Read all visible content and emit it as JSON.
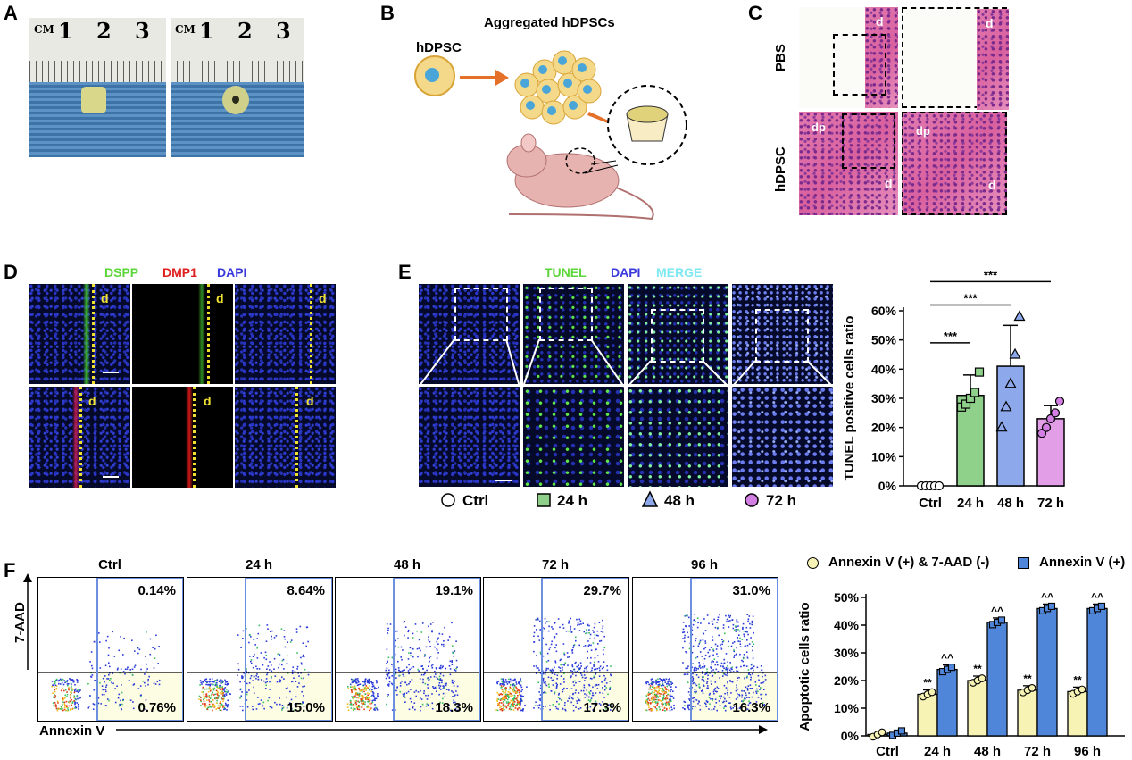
{
  "panels": {
    "A": {
      "label": "A",
      "ruler_unit": "CM",
      "ruler_numbers": [
        "1",
        "2",
        "3"
      ]
    },
    "B": {
      "label": "B",
      "title": "Aggregated hDPSCs",
      "cell_label": "hDPSC"
    },
    "C": {
      "label": "C",
      "row1": "PBS",
      "row2": "hDPSC",
      "tissue_d": "d",
      "tissue_dp": "dp"
    },
    "D": {
      "label": "D",
      "stain1": "DSPP",
      "stain2": "DMP1",
      "stain3": "DAPI",
      "d": "d",
      "colors": {
        "dspp": "#5cd63a",
        "dmp1": "#e02020",
        "dapi": "#3a3adc",
        "d": "#f0e030"
      }
    },
    "E": {
      "label": "E",
      "stain1": "TUNEL",
      "stain2": "DAPI",
      "stain3": "MERGE",
      "legend": [
        "Ctrl",
        "24 h",
        "48 h",
        "72 h"
      ],
      "colors": {
        "tunel": "#5cd63a",
        "dapi": "#3a3adc",
        "merge": "#7ee8f0"
      }
    },
    "F": {
      "label": "F",
      "ylabel": "7-AAD",
      "xlabel": "Annexin V",
      "plots": [
        {
          "title": "Ctrl",
          "upper": "0.14%",
          "lower": "0.76%"
        },
        {
          "title": "24 h",
          "upper": "8.64%",
          "lower": "15.0%"
        },
        {
          "title": "48 h",
          "upper": "19.1%",
          "lower": "18.3%"
        },
        {
          "title": "72 h",
          "upper": "29.7%",
          "lower": "17.3%"
        },
        {
          "title": "96 h",
          "upper": "31.0%",
          "lower": "16.3%"
        }
      ]
    }
  },
  "chart_data": [
    {
      "type": "bar",
      "title": "",
      "ylabel": "TUNEL positive cells ratio",
      "xlabel": "",
      "categories": [
        "Ctrl",
        "24 h",
        "48 h",
        "72 h"
      ],
      "values": [
        0.5,
        31,
        41,
        23
      ],
      "errors": [
        0.5,
        7,
        14,
        4.5
      ],
      "ylim": [
        0,
        60
      ],
      "yticks": [
        "0%",
        "10%",
        "20%",
        "30%",
        "40%",
        "50%",
        "60%"
      ],
      "colors": [
        "#ffffff",
        "#8fd18a",
        "#8ea8ec",
        "#e39ee8"
      ],
      "significance": [
        "***",
        "***",
        "***"
      ]
    },
    {
      "type": "bar",
      "title": "",
      "ylabel": "Apoptotic cells ratio",
      "categories": [
        "Ctrl",
        "24 h",
        "48 h",
        "72 h",
        "96 h"
      ],
      "ylim": [
        0,
        50
      ],
      "yticks": [
        "0%",
        "10%",
        "20%",
        "30%",
        "40%",
        "50%"
      ],
      "series": [
        {
          "name": "Annexin V (+) & 7-AAD (-)",
          "values": [
            0.5,
            15,
            20,
            16.5,
            16
          ],
          "color": "#f6f3b5",
          "marker": "**"
        },
        {
          "name": "Annexin V (+)",
          "values": [
            1,
            24,
            41,
            46,
            46
          ],
          "color": "#4f86d9",
          "marker": "^^"
        }
      ]
    }
  ]
}
